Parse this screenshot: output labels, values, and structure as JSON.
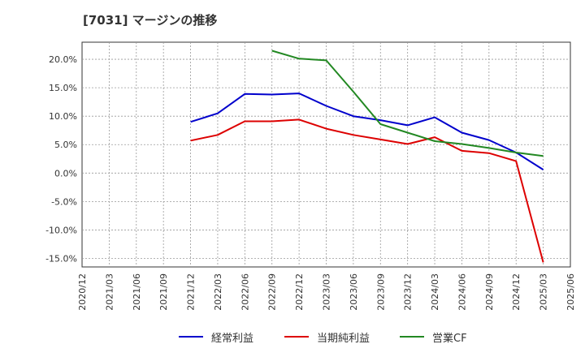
{
  "chart_data": {
    "type": "line",
    "title": "[7031]  マージンの推移",
    "xlabel": "",
    "ylabel": "",
    "ylim": [
      -16.5,
      23.0
    ],
    "yticks": [
      20.0,
      15.0,
      10.0,
      5.0,
      0.0,
      -5.0,
      -10.0,
      -15.0
    ],
    "ytick_labels": [
      "20.0%",
      "15.0%",
      "10.0%",
      "5.0%",
      "0.0%",
      "-5.0%",
      "-10.0%",
      "-15.0%"
    ],
    "x_ticks": [
      "2020/12",
      "2021/03",
      "2021/06",
      "2021/09",
      "2021/12",
      "2022/03",
      "2022/06",
      "2022/09",
      "2022/12",
      "2023/03",
      "2023/06",
      "2023/09",
      "2023/12",
      "2024/03",
      "2024/06",
      "2024/09",
      "2024/12",
      "2025/03",
      "2025/06"
    ],
    "grid": true,
    "legend_position": "bottom",
    "series": [
      {
        "name": "経常利益",
        "color": "#0000cc",
        "x": [
          "2021/12",
          "2022/03",
          "2022/06",
          "2022/09",
          "2022/12",
          "2023/03",
          "2023/06",
          "2023/09",
          "2023/12",
          "2024/03",
          "2024/06",
          "2024/09",
          "2024/12",
          "2025/03"
        ],
        "values": [
          9.0,
          10.5,
          13.9,
          13.8,
          14.0,
          11.8,
          10.0,
          9.3,
          8.4,
          9.8,
          7.1,
          5.8,
          3.6,
          0.6
        ]
      },
      {
        "name": "当期純利益",
        "color": "#dd0000",
        "x": [
          "2021/12",
          "2022/03",
          "2022/06",
          "2022/09",
          "2022/12",
          "2023/03",
          "2023/06",
          "2023/09",
          "2023/12",
          "2024/03",
          "2024/06",
          "2024/09",
          "2024/12",
          "2025/03"
        ],
        "values": [
          5.7,
          6.7,
          9.1,
          9.1,
          9.4,
          7.8,
          6.7,
          5.9,
          5.1,
          6.3,
          3.9,
          3.5,
          2.1,
          -15.7
        ]
      },
      {
        "name": "営業CF",
        "color": "#228822",
        "x": [
          "2022/09",
          "2022/12",
          "2023/03",
          "2023/06",
          "2023/09",
          "2023/12",
          "2024/03",
          "2024/06",
          "2024/09",
          "2024/12",
          "2025/03"
        ],
        "values": [
          21.5,
          20.1,
          19.8,
          14.3,
          8.6,
          7.1,
          5.6,
          5.1,
          4.4,
          3.6,
          3.0
        ]
      }
    ]
  }
}
